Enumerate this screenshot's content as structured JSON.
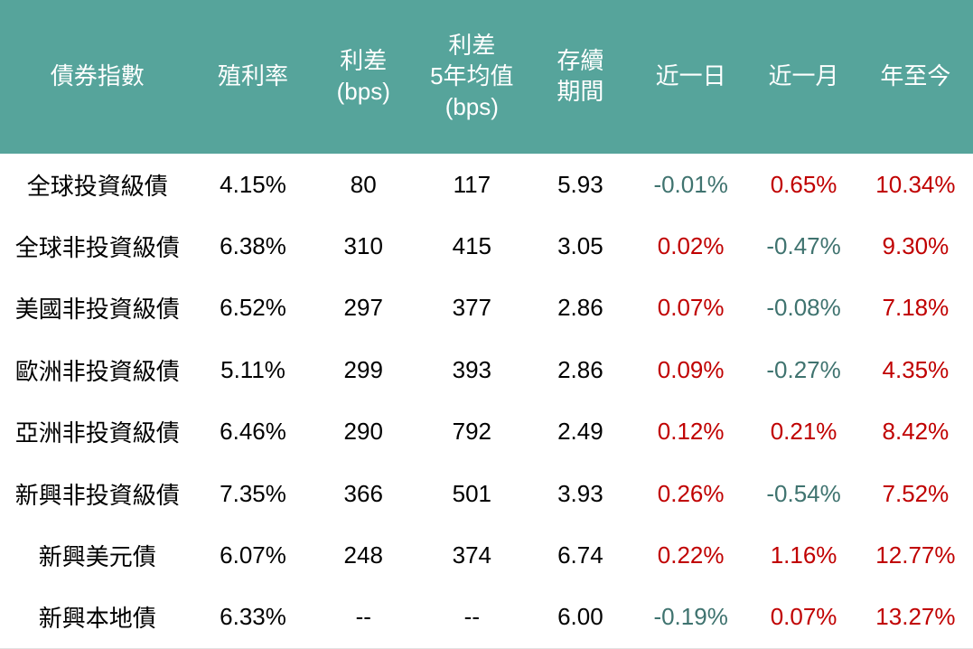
{
  "colors": {
    "header_bg": "#56a49b",
    "header_text": "#ffffff",
    "body_text": "#000000",
    "positive": "#c00000",
    "negative": "#3f736f",
    "border_bottom": "#e2e2e2"
  },
  "chart_data": {
    "type": "table",
    "title": "",
    "columns": [
      "債券指數",
      "殖利率",
      "利差\n(bps)",
      "利差\n5年均值\n(bps)",
      "存續\n期間",
      "近一日",
      "近一月",
      "年至今"
    ],
    "rows": [
      {
        "cells": [
          "全球投資級債",
          "4.15%",
          "80",
          "117",
          "5.93",
          "-0.01%",
          "0.65%",
          "10.34%"
        ]
      },
      {
        "cells": [
          "全球非投資級債",
          "6.38%",
          "310",
          "415",
          "3.05",
          "0.02%",
          "-0.47%",
          "9.30%"
        ]
      },
      {
        "cells": [
          "美國非投資級債",
          "6.52%",
          "297",
          "377",
          "2.86",
          "0.07%",
          "-0.08%",
          "7.18%"
        ]
      },
      {
        "cells": [
          "歐洲非投資級債",
          "5.11%",
          "299",
          "393",
          "2.86",
          "0.09%",
          "-0.27%",
          "4.35%"
        ]
      },
      {
        "cells": [
          "亞洲非投資級債",
          "6.46%",
          "290",
          "792",
          "2.49",
          "0.12%",
          "0.21%",
          "8.42%"
        ]
      },
      {
        "cells": [
          "新興非投資級債",
          "7.35%",
          "366",
          "501",
          "3.93",
          "0.26%",
          "-0.54%",
          "7.52%"
        ]
      },
      {
        "cells": [
          "新興美元債",
          "6.07%",
          "248",
          "374",
          "6.74",
          "0.22%",
          "1.16%",
          "12.77%"
        ]
      },
      {
        "cells": [
          "新興本地債",
          "6.33%",
          "--",
          "--",
          "6.00",
          "-0.19%",
          "0.07%",
          "13.27%"
        ]
      }
    ],
    "value_color_rule": {
      "positive": "#c00000",
      "negative": "#3f736f"
    }
  }
}
